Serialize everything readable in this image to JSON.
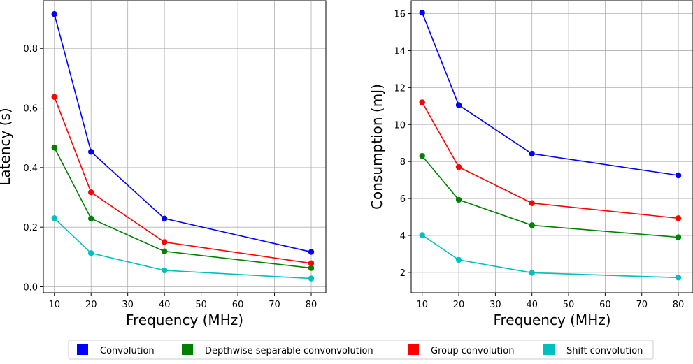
{
  "chart_data": [
    {
      "type": "line",
      "xlabel": "Frequency (MHz)",
      "ylabel": "Latency (s)",
      "x": [
        10,
        20,
        40,
        80
      ],
      "xlim": [
        7,
        84
      ],
      "ylim": [
        -0.02,
        0.96
      ],
      "xticks": [
        10,
        20,
        30,
        40,
        50,
        60,
        70,
        80
      ],
      "yticks": [
        0.0,
        0.2,
        0.4,
        0.6,
        0.8
      ],
      "ytick_labels": [
        "0.0",
        "0.2",
        "0.4",
        "0.6",
        "0.8"
      ],
      "grid": true,
      "series": [
        {
          "name": "Convolution",
          "color": "#0000ff",
          "values": [
            0.915,
            0.453,
            0.229,
            0.117
          ]
        },
        {
          "name": "Group convolution",
          "color": "#ff0000",
          "values": [
            0.637,
            0.317,
            0.15,
            0.079
          ]
        },
        {
          "name": "Depthwise separable convonvolution",
          "color": "#008000",
          "values": [
            0.467,
            0.229,
            0.119,
            0.063
          ]
        },
        {
          "name": "Shift convolution",
          "color": "#00bfbf",
          "values": [
            0.23,
            0.113,
            0.055,
            0.028
          ]
        }
      ]
    },
    {
      "type": "line",
      "xlabel": "Frequency (MHz)",
      "ylabel": "Consumption (mJ)",
      "x": [
        10,
        20,
        40,
        80
      ],
      "xlim": [
        7,
        84
      ],
      "ylim": [
        0.9,
        16.7
      ],
      "xticks": [
        10,
        20,
        30,
        40,
        50,
        60,
        70,
        80
      ],
      "yticks": [
        2,
        4,
        6,
        8,
        10,
        12,
        14,
        16
      ],
      "ytick_labels": [
        "2",
        "4",
        "6",
        "8",
        "10",
        "12",
        "14",
        "16"
      ],
      "grid": true,
      "series": [
        {
          "name": "Convolution",
          "color": "#0000ff",
          "values": [
            16.05,
            11.05,
            8.42,
            7.25
          ]
        },
        {
          "name": "Group convolution",
          "color": "#ff0000",
          "values": [
            11.2,
            7.7,
            5.75,
            4.93
          ]
        },
        {
          "name": "Depthwise separable convonvolution",
          "color": "#008000",
          "values": [
            8.3,
            5.93,
            4.55,
            3.9
          ]
        },
        {
          "name": "Shift convolution",
          "color": "#00bfbf",
          "values": [
            4.02,
            2.68,
            1.98,
            1.72
          ]
        }
      ]
    }
  ],
  "legend": {
    "placement": "bottom",
    "entries": [
      {
        "label": "Convolution",
        "color": "#0000ff"
      },
      {
        "label": "Depthwise separable convonvolution",
        "color": "#008000"
      },
      {
        "label": "Group convolution",
        "color": "#ff0000"
      },
      {
        "label": "Shift convolution",
        "color": "#00bfbf"
      }
    ]
  }
}
